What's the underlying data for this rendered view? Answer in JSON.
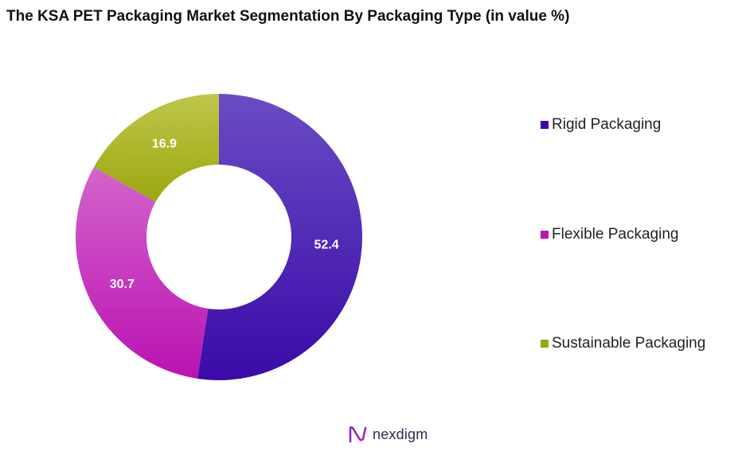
{
  "chart_data": {
    "type": "pie",
    "title": "The KSA PET Packaging Market Segmentation By Packaging Type (in value %)",
    "donut": true,
    "legend_placement": "right",
    "slices": [
      {
        "label": "Rigid Packaging",
        "value": 52.4,
        "color": "#3a0aa8",
        "color_light": "#6a4cc4"
      },
      {
        "label": "Flexible Packaging",
        "value": 30.7,
        "color": "#bb12b2",
        "color_light": "#d364cc"
      },
      {
        "label": "Sustainable Packaging",
        "value": 16.9,
        "color": "#9aa80e",
        "color_light": "#bfc64c"
      }
    ]
  },
  "branding": {
    "logo_text": "nexdigm",
    "logo_icon": "nexdigm-logo-icon"
  }
}
